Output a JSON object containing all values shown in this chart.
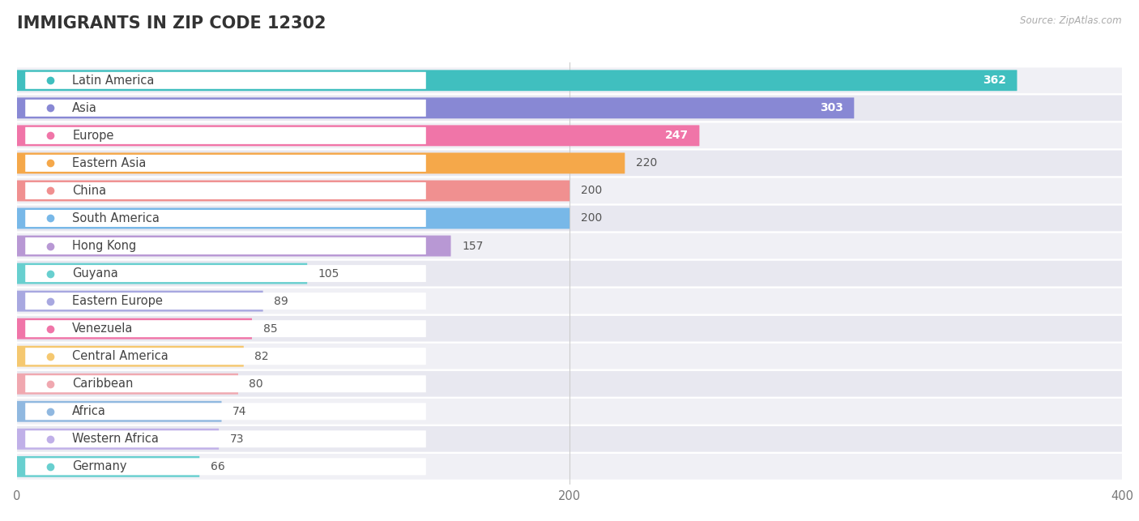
{
  "title": "IMMIGRANTS IN ZIP CODE 12302",
  "source": "Source: ZipAtlas.com",
  "categories": [
    "Latin America",
    "Asia",
    "Europe",
    "Eastern Asia",
    "China",
    "South America",
    "Hong Kong",
    "Guyana",
    "Eastern Europe",
    "Venezuela",
    "Central America",
    "Caribbean",
    "Africa",
    "Western Africa",
    "Germany"
  ],
  "values": [
    362,
    303,
    247,
    220,
    200,
    200,
    157,
    105,
    89,
    85,
    82,
    80,
    74,
    73,
    66
  ],
  "bar_colors": [
    "#40bfbf",
    "#8888d4",
    "#f075a8",
    "#f5a84a",
    "#f09090",
    "#78b8e8",
    "#b898d4",
    "#68cfcf",
    "#a8a8e0",
    "#f075a8",
    "#f5c870",
    "#f0a8b0",
    "#90b8e0",
    "#c0b0e8",
    "#68cfcf"
  ],
  "xlim": [
    0,
    400
  ],
  "background_color": "#ffffff",
  "row_colors": [
    "#f0f0f5",
    "#e8e8f0"
  ],
  "title_fontsize": 15,
  "label_fontsize": 10.5,
  "value_fontsize": 10
}
